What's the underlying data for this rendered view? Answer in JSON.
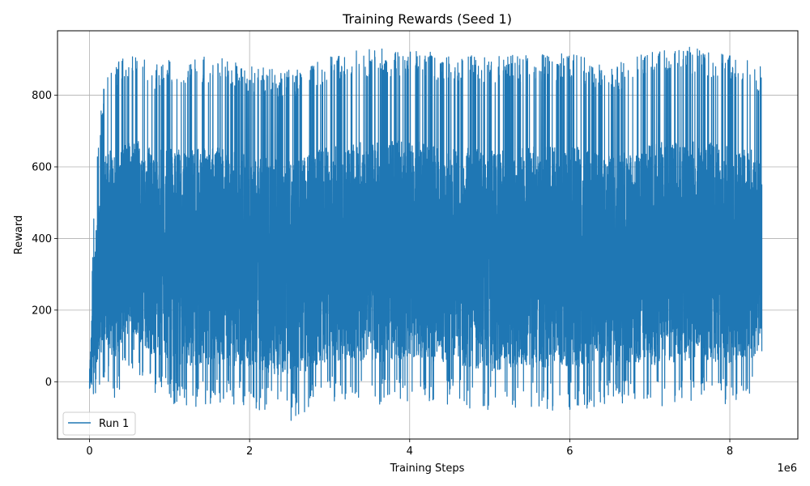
{
  "chart_data": {
    "type": "line",
    "title": "Training Rewards (Seed 1)",
    "xlabel": "Training Steps",
    "ylabel": "Reward",
    "x_offset_label": "1e6",
    "xlim": [
      -400000,
      8850000
    ],
    "ylim": [
      -160,
      980
    ],
    "x_ticks": [
      0,
      2000000,
      4000000,
      6000000,
      8000000
    ],
    "x_tick_labels": [
      "0",
      "2",
      "4",
      "6",
      "8"
    ],
    "y_ticks": [
      0,
      200,
      400,
      600,
      800
    ],
    "y_tick_labels": [
      "0",
      "200",
      "400",
      "600",
      "800"
    ],
    "grid": true,
    "legend_position": "lower-left",
    "series_color": "#1f77b4",
    "series": [
      {
        "name": "Run 1",
        "x_range": [
          0,
          8400000
        ],
        "envelope": [
          {
            "x": 0,
            "lo": -55,
            "hi": 60
          },
          {
            "x": 60000,
            "lo": -40,
            "hi": 520
          },
          {
            "x": 120000,
            "lo": -30,
            "hi": 720
          },
          {
            "x": 200000,
            "lo": 20,
            "hi": 870
          },
          {
            "x": 300000,
            "lo": -60,
            "hi": 890
          },
          {
            "x": 500000,
            "lo": 40,
            "hi": 915
          },
          {
            "x": 800000,
            "lo": -40,
            "hi": 890
          },
          {
            "x": 1200000,
            "lo": -75,
            "hi": 905
          },
          {
            "x": 1600000,
            "lo": -70,
            "hi": 910
          },
          {
            "x": 2000000,
            "lo": -75,
            "hi": 880
          },
          {
            "x": 2500000,
            "lo": -110,
            "hi": 870
          },
          {
            "x": 3000000,
            "lo": -60,
            "hi": 915
          },
          {
            "x": 3500000,
            "lo": -70,
            "hi": 930
          },
          {
            "x": 4000000,
            "lo": -55,
            "hi": 930
          },
          {
            "x": 4500000,
            "lo": -65,
            "hi": 915
          },
          {
            "x": 5000000,
            "lo": -90,
            "hi": 910
          },
          {
            "x": 5500000,
            "lo": -80,
            "hi": 915
          },
          {
            "x": 6000000,
            "lo": -80,
            "hi": 920
          },
          {
            "x": 6500000,
            "lo": -70,
            "hi": 880
          },
          {
            "x": 7000000,
            "lo": -75,
            "hi": 925
          },
          {
            "x": 7500000,
            "lo": -60,
            "hi": 935
          },
          {
            "x": 8000000,
            "lo": -70,
            "hi": 920
          },
          {
            "x": 8400000,
            "lo": -45,
            "hi": 880
          }
        ],
        "end_values": [
          470,
          550,
          300,
          85
        ]
      }
    ]
  }
}
